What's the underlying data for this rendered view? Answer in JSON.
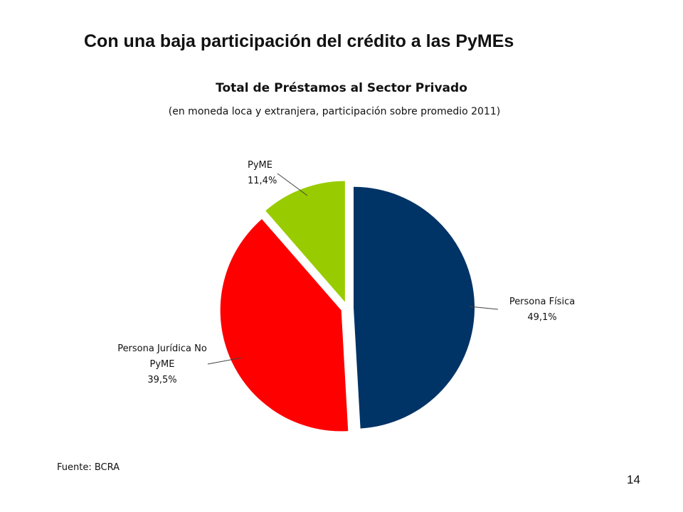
{
  "slide": {
    "title": "Con una baja participación del crédito a las PyMEs",
    "source": "Fuente: BCRA",
    "page_number": "14"
  },
  "chart_data": {
    "type": "pie",
    "title": "Total de Préstamos al Sector Privado",
    "subtitle": "(en moneda loca y extranjera, participación sobre promedio 2011)",
    "slices": [
      {
        "name": "Persona Física",
        "label_lines": [
          "Persona Física",
          "49,1%"
        ],
        "value": 49.1,
        "value_label": "49,1%",
        "color": "#003366"
      },
      {
        "name": "Persona Jurídica No PyME",
        "label_lines": [
          "Persona Jurídica No",
          "PyME",
          "39,5%"
        ],
        "value": 39.5,
        "value_label": "39,5%",
        "color": "#ff0000"
      },
      {
        "name": "PyME",
        "label_lines": [
          "PyME",
          "11,4%"
        ],
        "value": 11.4,
        "value_label": "11,4%",
        "color": "#99cc00"
      }
    ],
    "start_angle_deg": 0,
    "direction": "clockwise",
    "exploded": true,
    "legend": "none"
  }
}
